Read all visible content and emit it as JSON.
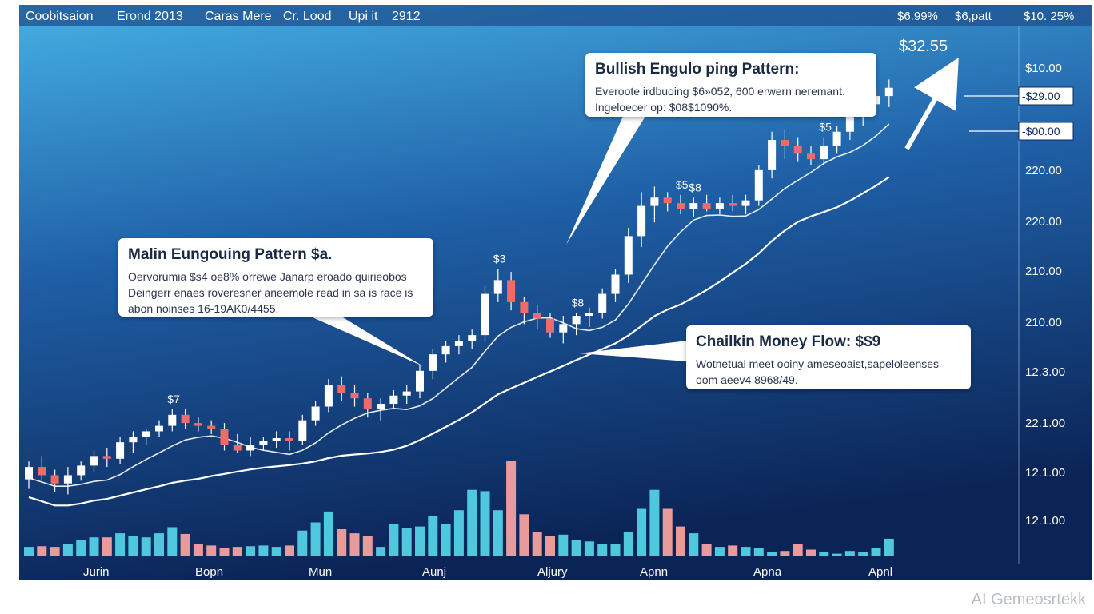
{
  "header": {
    "items": [
      "Coobitsaion",
      "Erond 2013",
      "Caras Mere",
      "Cr. Lood",
      "Upi it",
      "2912"
    ],
    "right_items": [
      "$6.99%",
      "$6,patt",
      "$10. 25%"
    ]
  },
  "price_tag": "$32.55",
  "callouts": {
    "bullish": {
      "title": "Bullish Engulo ping Pattern:",
      "lines": [
        "Everoote irdbuoing $6»052, 600 erwern neremant.",
        "Ingeloecer op: $08$1090%."
      ]
    },
    "main": {
      "title": "Malin Eungouing Pattern $a.",
      "lines": [
        "Oervorumia $s4 oe8% orrewe Janarp eroado quirieobos",
        "Deingerr enaes roveresner aneemole read in sa is race is",
        "abon noinses 16-19AK0/4455."
      ]
    },
    "chaikin": {
      "title": "Chailkin Money Flow: $$9",
      "lines": [
        "Wotnetual meet ooiny ameseoaist,sapeloleenses",
        "oom aeev4 8968/49."
      ]
    }
  },
  "watermark": "AI Gemeosrtekk",
  "colors": {
    "bg_top": "#3fa6dc",
    "bg_bottom": "#0d2a5e",
    "bull": "#ffffff",
    "bear": "#ef6a6a",
    "vol_bull": "#4fc7dc",
    "vol_bear": "#e99a9a",
    "ma": "#ffffff"
  },
  "chart_data": {
    "type": "candlestick",
    "x_labels": [
      "Jurin",
      "Bopn",
      "Mun",
      "Aunj",
      "Aljury",
      "Apnn",
      "Apna",
      "Apnl"
    ],
    "y_tick_labels": [
      "$10.00",
      "220.00",
      "220.00",
      "210.00",
      "210.00",
      "12.3.00",
      "22.1.00",
      "12.1.00",
      "12.1.00"
    ],
    "price_markers": [
      "-$29.00",
      "-$00.00"
    ],
    "candle_annotations": [
      {
        "label": "$7",
        "index": 11
      },
      {
        "label": "$3",
        "index": 36
      },
      {
        "label": "$8",
        "index": 42
      },
      {
        "label": "$5",
        "index": 50
      },
      {
        "label": "$8",
        "index": 51
      },
      {
        "label": "$5",
        "index": 61
      }
    ],
    "candles": [
      {
        "o": 27,
        "h": 40,
        "l": 20,
        "c": 36
      },
      {
        "o": 36,
        "h": 44,
        "l": 26,
        "c": 30
      },
      {
        "o": 30,
        "h": 34,
        "l": 18,
        "c": 24
      },
      {
        "o": 24,
        "h": 36,
        "l": 16,
        "c": 30
      },
      {
        "o": 30,
        "h": 40,
        "l": 26,
        "c": 37
      },
      {
        "o": 37,
        "h": 48,
        "l": 32,
        "c": 44
      },
      {
        "o": 44,
        "h": 50,
        "l": 36,
        "c": 42
      },
      {
        "o": 42,
        "h": 58,
        "l": 38,
        "c": 54
      },
      {
        "o": 54,
        "h": 62,
        "l": 46,
        "c": 58
      },
      {
        "o": 58,
        "h": 64,
        "l": 52,
        "c": 62
      },
      {
        "o": 62,
        "h": 70,
        "l": 58,
        "c": 66
      },
      {
        "o": 66,
        "h": 78,
        "l": 62,
        "c": 74
      },
      {
        "o": 74,
        "h": 78,
        "l": 64,
        "c": 68
      },
      {
        "o": 68,
        "h": 72,
        "l": 62,
        "c": 66
      },
      {
        "o": 66,
        "h": 70,
        "l": 60,
        "c": 64
      },
      {
        "o": 64,
        "h": 68,
        "l": 48,
        "c": 52
      },
      {
        "o": 52,
        "h": 60,
        "l": 46,
        "c": 48
      },
      {
        "o": 48,
        "h": 58,
        "l": 44,
        "c": 52
      },
      {
        "o": 52,
        "h": 58,
        "l": 48,
        "c": 55
      },
      {
        "o": 55,
        "h": 62,
        "l": 50,
        "c": 57
      },
      {
        "o": 57,
        "h": 62,
        "l": 48,
        "c": 55
      },
      {
        "o": 55,
        "h": 74,
        "l": 52,
        "c": 70
      },
      {
        "o": 70,
        "h": 84,
        "l": 66,
        "c": 80
      },
      {
        "o": 80,
        "h": 100,
        "l": 76,
        "c": 96
      },
      {
        "o": 96,
        "h": 102,
        "l": 84,
        "c": 90
      },
      {
        "o": 90,
        "h": 96,
        "l": 80,
        "c": 86
      },
      {
        "o": 86,
        "h": 90,
        "l": 72,
        "c": 78
      },
      {
        "o": 78,
        "h": 86,
        "l": 70,
        "c": 82
      },
      {
        "o": 82,
        "h": 92,
        "l": 78,
        "c": 88
      },
      {
        "o": 88,
        "h": 96,
        "l": 82,
        "c": 91
      },
      {
        "o": 91,
        "h": 110,
        "l": 86,
        "c": 106
      },
      {
        "o": 106,
        "h": 122,
        "l": 100,
        "c": 118
      },
      {
        "o": 118,
        "h": 128,
        "l": 112,
        "c": 124
      },
      {
        "o": 124,
        "h": 132,
        "l": 118,
        "c": 128
      },
      {
        "o": 128,
        "h": 136,
        "l": 122,
        "c": 132
      },
      {
        "o": 132,
        "h": 168,
        "l": 128,
        "c": 162
      },
      {
        "o": 162,
        "h": 180,
        "l": 156,
        "c": 172
      },
      {
        "o": 172,
        "h": 178,
        "l": 150,
        "c": 156
      },
      {
        "o": 156,
        "h": 160,
        "l": 140,
        "c": 148
      },
      {
        "o": 148,
        "h": 154,
        "l": 136,
        "c": 144
      },
      {
        "o": 144,
        "h": 148,
        "l": 130,
        "c": 134
      },
      {
        "o": 134,
        "h": 146,
        "l": 126,
        "c": 140
      },
      {
        "o": 140,
        "h": 148,
        "l": 132,
        "c": 146
      },
      {
        "o": 146,
        "h": 152,
        "l": 138,
        "c": 148
      },
      {
        "o": 148,
        "h": 166,
        "l": 144,
        "c": 162
      },
      {
        "o": 162,
        "h": 180,
        "l": 156,
        "c": 176
      },
      {
        "o": 176,
        "h": 210,
        "l": 170,
        "c": 204
      },
      {
        "o": 204,
        "h": 236,
        "l": 196,
        "c": 226
      },
      {
        "o": 226,
        "h": 240,
        "l": 214,
        "c": 232
      },
      {
        "o": 232,
        "h": 236,
        "l": 222,
        "c": 228
      },
      {
        "o": 228,
        "h": 234,
        "l": 220,
        "c": 224
      },
      {
        "o": 224,
        "h": 232,
        "l": 218,
        "c": 228
      },
      {
        "o": 228,
        "h": 234,
        "l": 222,
        "c": 224
      },
      {
        "o": 224,
        "h": 232,
        "l": 220,
        "c": 228
      },
      {
        "o": 228,
        "h": 234,
        "l": 222,
        "c": 226
      },
      {
        "o": 226,
        "h": 234,
        "l": 220,
        "c": 230
      },
      {
        "o": 230,
        "h": 256,
        "l": 226,
        "c": 252
      },
      {
        "o": 252,
        "h": 280,
        "l": 246,
        "c": 274
      },
      {
        "o": 274,
        "h": 282,
        "l": 260,
        "c": 270
      },
      {
        "o": 270,
        "h": 276,
        "l": 258,
        "c": 264
      },
      {
        "o": 264,
        "h": 270,
        "l": 256,
        "c": 260
      },
      {
        "o": 260,
        "h": 276,
        "l": 256,
        "c": 270
      },
      {
        "o": 270,
        "h": 284,
        "l": 264,
        "c": 280
      },
      {
        "o": 280,
        "h": 300,
        "l": 274,
        "c": 294
      },
      {
        "o": 294,
        "h": 306,
        "l": 284,
        "c": 300
      },
      {
        "o": 300,
        "h": 312,
        "l": 294,
        "c": 306
      },
      {
        "o": 306,
        "h": 318,
        "l": 298,
        "c": 312
      }
    ],
    "volume": [
      14,
      15,
      14,
      18,
      24,
      28,
      28,
      34,
      30,
      28,
      34,
      43,
      33,
      18,
      16,
      12,
      14,
      15,
      16,
      14,
      16,
      38,
      50,
      66,
      40,
      34,
      30,
      14,
      48,
      42,
      44,
      60,
      48,
      68,
      98,
      96,
      68,
      140,
      62,
      36,
      30,
      32,
      24,
      22,
      18,
      18,
      36,
      70,
      98,
      70,
      44,
      34,
      18,
      14,
      16,
      14,
      12,
      6,
      8,
      18,
      10,
      6,
      4,
      8,
      6,
      12,
      26
    ]
  }
}
